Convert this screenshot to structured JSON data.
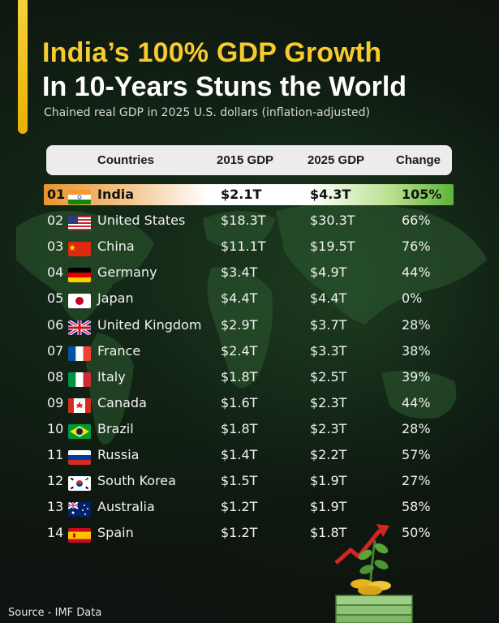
{
  "title_line1": "India’s 100% GDP Growth",
  "title_line2": "In 10-Years Stuns the World",
  "subtitle": "Chained real GDP in 2025 U.S. dollars (inflation-adjusted)",
  "table": {
    "headers": {
      "country": "Countries",
      "gdp2015": "2015 GDP",
      "gdp2025": "2025 GDP",
      "change": "Change"
    },
    "rows": [
      {
        "rank": "01",
        "flag": "india-flag-icon",
        "country": "India",
        "gdp2015": "$2.1T",
        "gdp2025": "$4.3T",
        "change": "105%"
      },
      {
        "rank": "02",
        "flag": "usa-flag-icon",
        "country": "United States",
        "gdp2015": "$18.3T",
        "gdp2025": "$30.3T",
        "change": "66%"
      },
      {
        "rank": "03",
        "flag": "china-flag-icon",
        "country": "China",
        "gdp2015": "$11.1T",
        "gdp2025": "$19.5T",
        "change": "76%"
      },
      {
        "rank": "04",
        "flag": "germany-flag-icon",
        "country": "Germany",
        "gdp2015": "$3.4T",
        "gdp2025": "$4.9T",
        "change": "44%"
      },
      {
        "rank": "05",
        "flag": "japan-flag-icon",
        "country": "Japan",
        "gdp2015": "$4.4T",
        "gdp2025": "$4.4T",
        "change": "0%"
      },
      {
        "rank": "06",
        "flag": "uk-flag-icon",
        "country": "United Kingdom",
        "gdp2015": "$2.9T",
        "gdp2025": "$3.7T",
        "change": "28%"
      },
      {
        "rank": "07",
        "flag": "france-flag-icon",
        "country": "France",
        "gdp2015": "$2.4T",
        "gdp2025": "$3.3T",
        "change": "38%"
      },
      {
        "rank": "08",
        "flag": "italy-flag-icon",
        "country": "Italy",
        "gdp2015": "$1.8T",
        "gdp2025": "$2.5T",
        "change": "39%"
      },
      {
        "rank": "09",
        "flag": "canada-flag-icon",
        "country": "Canada",
        "gdp2015": "$1.6T",
        "gdp2025": "$2.3T",
        "change": "44%"
      },
      {
        "rank": "10",
        "flag": "brazil-flag-icon",
        "country": "Brazil",
        "gdp2015": "$1.8T",
        "gdp2025": "$2.3T",
        "change": "28%"
      },
      {
        "rank": "11",
        "flag": "russia-flag-icon",
        "country": "Russia",
        "gdp2015": "$1.4T",
        "gdp2025": "$2.2T",
        "change": "57%"
      },
      {
        "rank": "12",
        "flag": "south-korea-flag-icon",
        "country": "South Korea",
        "gdp2015": "$1.5T",
        "gdp2025": "$1.9T",
        "change": "27%"
      },
      {
        "rank": "13",
        "flag": "australia-flag-icon",
        "country": "Australia",
        "gdp2015": "$1.2T",
        "gdp2025": "$1.9T",
        "change": "58%"
      },
      {
        "rank": "14",
        "flag": "spain-flag-icon",
        "country": "Spain",
        "gdp2015": "$1.2T",
        "gdp2025": "$1.8T",
        "change": "50%"
      }
    ]
  },
  "source": "Source - IMF Data",
  "colors": {
    "title_accent": "#f7cb2d",
    "background": "#0d130e",
    "header_bg": "#ececec"
  }
}
